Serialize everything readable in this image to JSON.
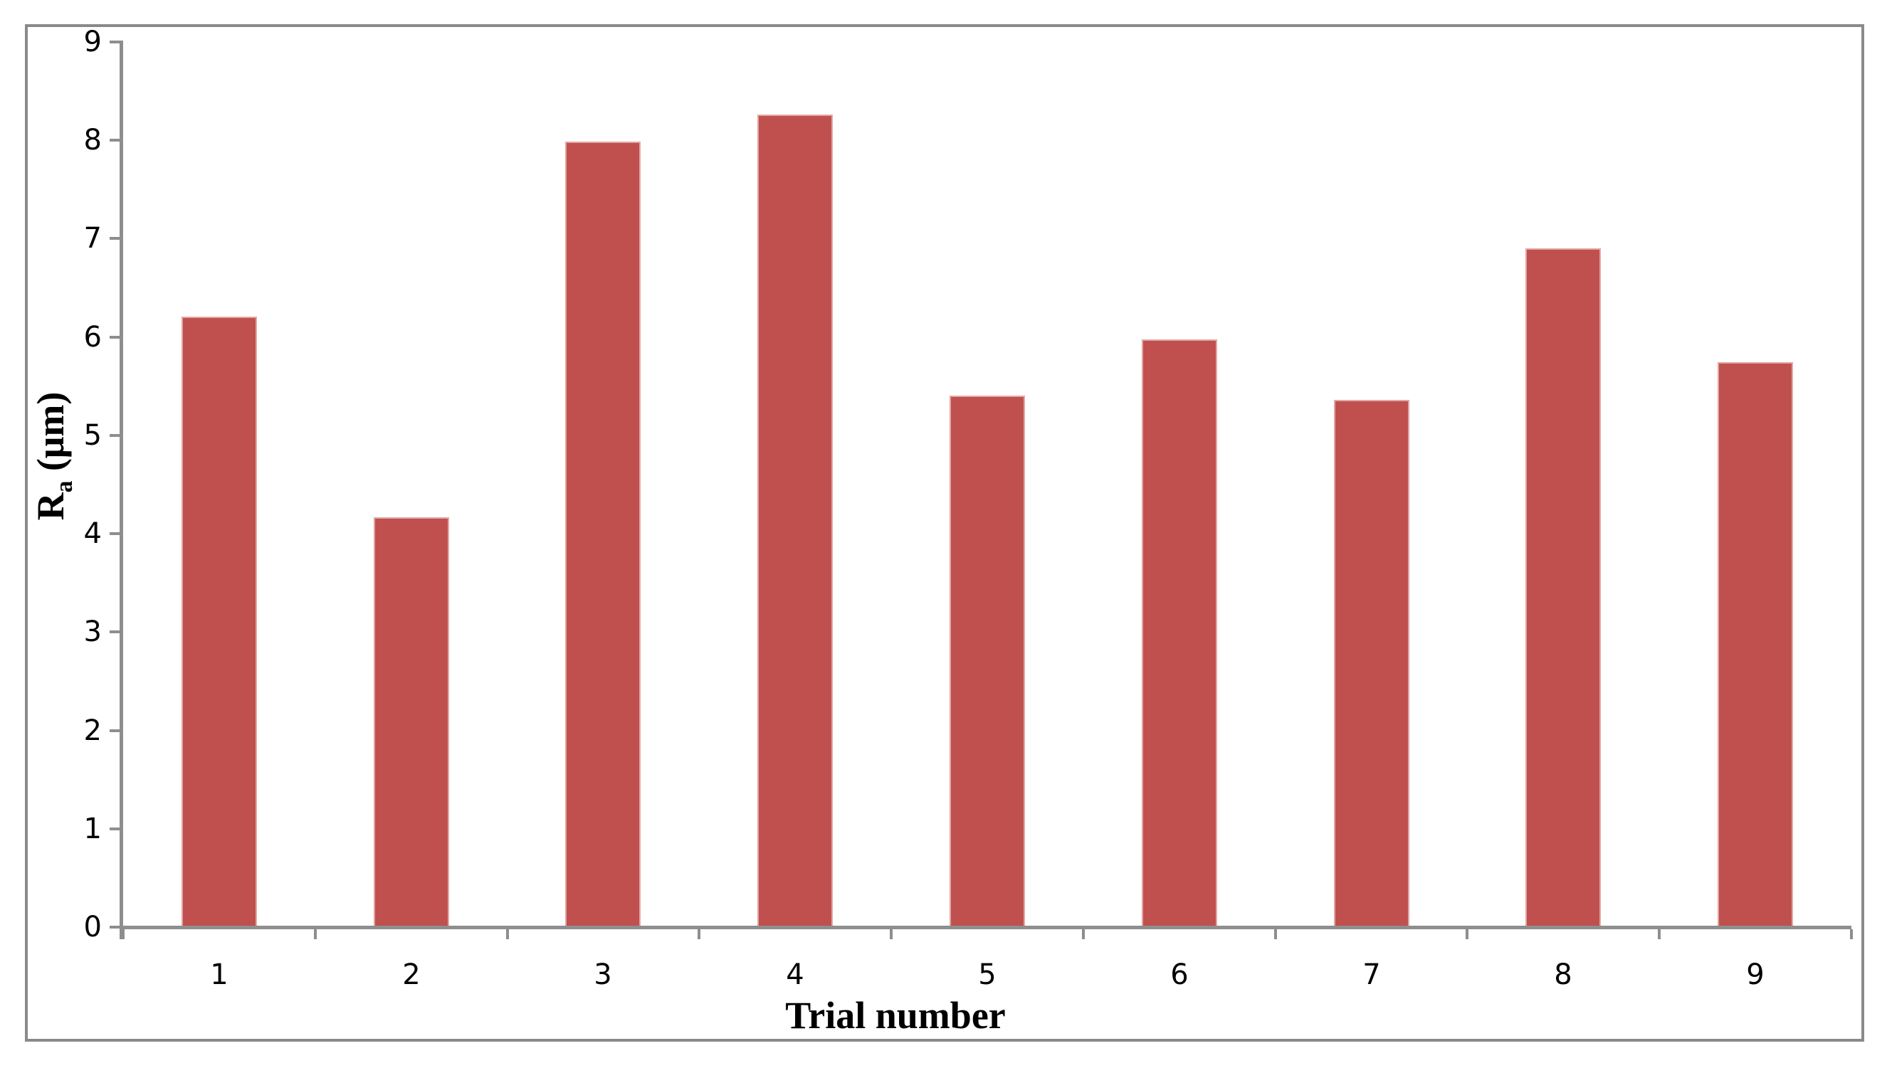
{
  "chart_data": {
    "type": "bar",
    "title": "",
    "categories": [
      "1",
      "2",
      "3",
      "4",
      "5",
      "6",
      "7",
      "8",
      "9"
    ],
    "values": [
      6.19,
      4.15,
      7.97,
      8.25,
      5.39,
      5.96,
      5.35,
      6.89,
      5.73
    ],
    "xlabel": "Trial number",
    "ylabel": "Ra (μm)",
    "ylabel_parts": {
      "prefix": "R",
      "subscript": "a",
      "suffix": " (μm)"
    },
    "ylim": [
      0,
      9
    ],
    "yticks": [
      0,
      1,
      2,
      3,
      4,
      5,
      6,
      7,
      8,
      9
    ],
    "grid": false,
    "legend_position": "none",
    "colors": {
      "bar_fill": "#bf504e",
      "bar_edge": "#e8c5c4",
      "axis": "#8e8e8e",
      "outer_border": "#8a8a8a",
      "text": "#000000",
      "background": "#ffffff"
    }
  }
}
